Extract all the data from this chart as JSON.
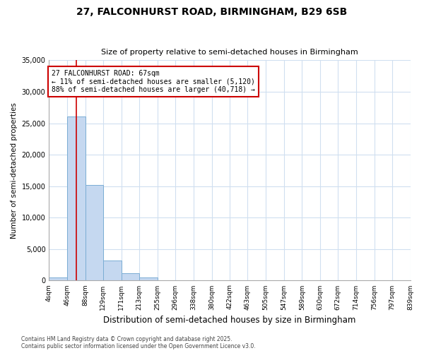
{
  "title1": "27, FALCONHURST ROAD, BIRMINGHAM, B29 6SB",
  "title2": "Size of property relative to semi-detached houses in Birmingham",
  "xlabel": "Distribution of semi-detached houses by size in Birmingham",
  "ylabel": "Number of semi-detached properties",
  "bin_edges": [
    4,
    46,
    88,
    129,
    171,
    213,
    255,
    296,
    338,
    380,
    422,
    463,
    505,
    547,
    589,
    630,
    672,
    714,
    756,
    797,
    839
  ],
  "bar_heights": [
    500,
    26100,
    15200,
    3200,
    1200,
    500,
    50,
    30,
    10,
    5,
    3,
    2,
    1,
    1,
    1,
    0,
    0,
    0,
    0,
    0
  ],
  "bar_color": "#c5d8f0",
  "bar_edge_color": "#7aadd4",
  "property_size": 67,
  "annotation_line1": "27 FALCONHURST ROAD: 67sqm",
  "annotation_line2": "← 11% of semi-detached houses are smaller (5,120)",
  "annotation_line3": "88% of semi-detached houses are larger (40,718) →",
  "vline_color": "#cc0000",
  "annotation_box_color": "#cc0000",
  "ylim": [
    0,
    35000
  ],
  "yticks": [
    0,
    5000,
    10000,
    15000,
    20000,
    25000,
    30000,
    35000
  ],
  "bg_color": "#ffffff",
  "grid_color": "#d0dff0",
  "footnote": "Contains HM Land Registry data © Crown copyright and database right 2025.\nContains public sector information licensed under the Open Government Licence v3.0."
}
